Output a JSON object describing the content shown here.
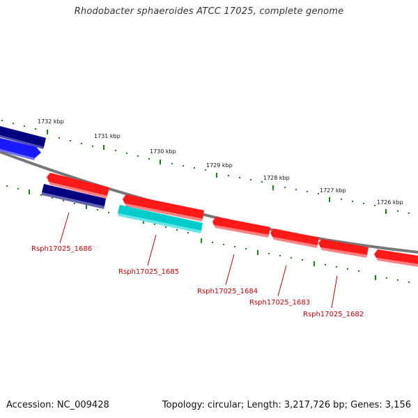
{
  "title": "Rhodobacter sphaeroides ATCC 17025, complete genome",
  "footer": {
    "accession": "Accession: NC_009428",
    "summary": "Topology: circular; Length: 3,217,726 bp; Genes: 3,156"
  },
  "colors": {
    "backbone": "#777777",
    "tick": "#118811",
    "forward_red": "#ff1a1a",
    "reverse_red": "#ff1a1a",
    "navy": "#000080",
    "blue": "#1a1aff",
    "cyan": "#00cccc",
    "gene_label": "#cc0000"
  },
  "scale_labels": [
    "1732 kbp",
    "1731 kbp",
    "1730 kbp",
    "1729 kbp",
    "1728 kbp",
    "1727 kbp",
    "1726 kbp"
  ],
  "gene_labels": [
    "Rsph17025_1686",
    "Rsph17025_1685",
    "Rsph17025_1684",
    "Rsph17025_1683",
    "Rsph17025_1682"
  ],
  "features": [
    {
      "strand": "forward-outer",
      "color": "navy",
      "arrow": "none"
    },
    {
      "strand": "forward-outer",
      "color": "blue",
      "arrow": "right"
    },
    {
      "strand": "reverse",
      "color": "red",
      "arrow": "left"
    },
    {
      "strand": "reverse",
      "color": "red",
      "arrow": "left"
    },
    {
      "strand": "reverse",
      "color": "red",
      "arrow": "left"
    },
    {
      "strand": "reverse",
      "color": "red",
      "arrow": "left"
    },
    {
      "strand": "reverse",
      "color": "red",
      "arrow": "left"
    },
    {
      "strand": "reverse-inner",
      "color": "navy",
      "arrow": "none"
    },
    {
      "strand": "reverse-inner",
      "color": "cyan",
      "arrow": "none"
    }
  ]
}
